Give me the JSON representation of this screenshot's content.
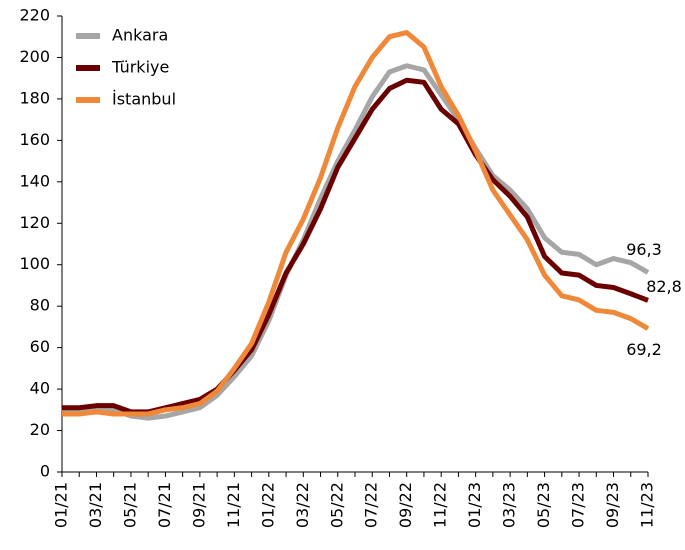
{
  "chart_data": {
    "type": "line",
    "categories": [
      "01/21",
      null,
      "03/21",
      null,
      "05/21",
      null,
      "07/21",
      null,
      "09/21",
      null,
      "11/21",
      null,
      "01/22",
      null,
      "03/22",
      null,
      "05/22",
      null,
      "07/22",
      null,
      "09/22",
      null,
      "11/22",
      null,
      "01/23",
      null,
      "03/23",
      null,
      "05/23",
      null,
      "07/23",
      null,
      "09/23",
      null,
      "11/23"
    ],
    "series": [
      {
        "name": "Ankara",
        "color": "#a6a6a6",
        "values": [
          29,
          30,
          30,
          30,
          27,
          26,
          27,
          29,
          31,
          37,
          46,
          56,
          73,
          95,
          112,
          132,
          150,
          165,
          181,
          193,
          196,
          194,
          182,
          170,
          156,
          143,
          136,
          127,
          113,
          106,
          105,
          100,
          103,
          101,
          96.3
        ],
        "value_labels": [
          null,
          null,
          null,
          null,
          null,
          null,
          null,
          null,
          null,
          null,
          null,
          null,
          null,
          null,
          null,
          null,
          null,
          null,
          null,
          null,
          null,
          null,
          null,
          null,
          null,
          null,
          null,
          null,
          null,
          null,
          null,
          null,
          null,
          null,
          "96,3"
        ]
      },
      {
        "name": "Türkiye",
        "color": "#6b0000",
        "values": [
          31,
          31,
          32,
          32,
          29,
          29,
          31,
          33,
          35,
          40,
          49,
          59,
          76,
          96,
          110,
          127,
          147,
          161,
          175,
          185,
          189,
          188,
          175,
          168,
          153,
          141,
          133,
          123,
          104,
          96,
          95,
          90,
          89,
          86,
          82.8
        ],
        "value_labels": [
          null,
          null,
          null,
          null,
          null,
          null,
          null,
          null,
          null,
          null,
          null,
          null,
          null,
          null,
          null,
          null,
          null,
          null,
          null,
          null,
          null,
          null,
          null,
          null,
          null,
          null,
          null,
          null,
          null,
          null,
          null,
          null,
          null,
          null,
          "82,8"
        ]
      },
      {
        "name": "İstanbul",
        "color": "#f0883a",
        "values": [
          28,
          28,
          29,
          28,
          28,
          28,
          30,
          31,
          33,
          39,
          50,
          62,
          82,
          106,
          122,
          142,
          166,
          186,
          200,
          210,
          212,
          205,
          186,
          172,
          155,
          136,
          124,
          112,
          95,
          85,
          83,
          78,
          77,
          74,
          69.2
        ],
        "value_labels": [
          null,
          null,
          null,
          null,
          null,
          null,
          null,
          null,
          null,
          null,
          null,
          null,
          null,
          null,
          null,
          null,
          null,
          null,
          null,
          null,
          null,
          null,
          null,
          null,
          null,
          null,
          null,
          null,
          null,
          null,
          null,
          null,
          null,
          null,
          "69,2"
        ]
      }
    ],
    "ylim": [
      0,
      220
    ],
    "yticks": [
      0,
      20,
      40,
      60,
      80,
      100,
      120,
      140,
      160,
      180,
      200,
      220
    ],
    "grid": false,
    "legend": "top-left"
  }
}
